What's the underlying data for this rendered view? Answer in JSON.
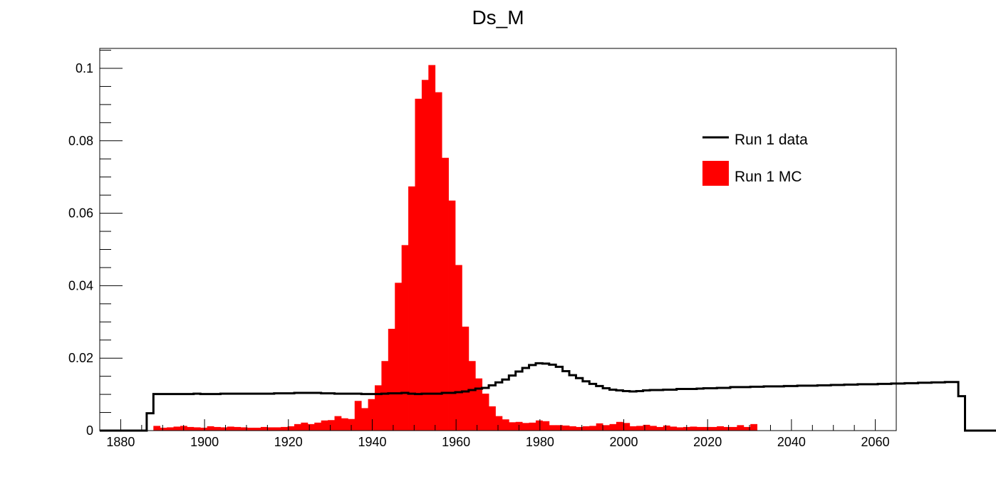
{
  "chart_data": {
    "type": "bar",
    "title": "Ds_M",
    "xlabel": "",
    "ylabel": "",
    "xlim": [
      1875,
      2065
    ],
    "ylim": [
      0,
      0.1055
    ],
    "x_ticks": [
      1880,
      1900,
      1920,
      1940,
      1960,
      1980,
      2000,
      2020,
      2040,
      2060
    ],
    "y_ticks": [
      0,
      0.02,
      0.04,
      0.06,
      0.08,
      0.1
    ],
    "y_tick_labels": [
      "0",
      "0.02",
      "0.04",
      "0.06",
      "0.08",
      "0.1"
    ],
    "grid": false,
    "legend_position": "top-right",
    "bin_start": 1875,
    "bin_width": 1.6,
    "series": [
      {
        "name": "Run 1 MC",
        "style": "filled-histogram",
        "color": "#ff0000",
        "values": [
          0,
          0,
          0,
          0,
          0,
          0,
          0,
          0,
          0.0013,
          0.0008,
          0.0009,
          0.0011,
          0.0013,
          0.001,
          0.0009,
          0.0008,
          0.0012,
          0.001,
          0.0009,
          0.0011,
          0.001,
          0.0009,
          0.0008,
          0.0008,
          0.001,
          0.0009,
          0.0009,
          0.001,
          0.0012,
          0.0018,
          0.0022,
          0.0018,
          0.0022,
          0.0028,
          0.0029,
          0.004,
          0.0034,
          0.0032,
          0.0082,
          0.0062,
          0.0087,
          0.0125,
          0.0192,
          0.0281,
          0.0408,
          0.0512,
          0.0674,
          0.0916,
          0.0968,
          0.1009,
          0.0934,
          0.0753,
          0.0635,
          0.0457,
          0.0287,
          0.0192,
          0.0144,
          0.0102,
          0.0067,
          0.004,
          0.0031,
          0.0023,
          0.0024,
          0.0021,
          0.0022,
          0.0028,
          0.0026,
          0.0015,
          0.0015,
          0.0014,
          0.0012,
          0.001,
          0.0012,
          0.0013,
          0.002,
          0.0015,
          0.0018,
          0.0024,
          0.0021,
          0.0012,
          0.0013,
          0.0016,
          0.0013,
          0.001,
          0.0014,
          0.0011,
          0.0009,
          0.001,
          0.0011,
          0.001,
          0.001,
          0.001,
          0.0012,
          0.001,
          0.001,
          0.0015,
          0.001,
          0.0018,
          0,
          0,
          0,
          0,
          0,
          0,
          0,
          0,
          0,
          0
        ]
      },
      {
        "name": "Run 1 data",
        "style": "line-histogram",
        "color": "#000000",
        "values": [
          0,
          0,
          0,
          0,
          0,
          0,
          0,
          0.0048,
          0.0101,
          0.0101,
          0.0101,
          0.0101,
          0.0101,
          0.0101,
          0.0102,
          0.0101,
          0.0101,
          0.0101,
          0.0102,
          0.0102,
          0.0102,
          0.0102,
          0.0102,
          0.0102,
          0.0102,
          0.0102,
          0.0103,
          0.0103,
          0.0103,
          0.0104,
          0.0104,
          0.0104,
          0.0104,
          0.0103,
          0.0103,
          0.0102,
          0.0102,
          0.0102,
          0.0102,
          0.0101,
          0.0101,
          0.0101,
          0.0102,
          0.0103,
          0.0103,
          0.0104,
          0.0102,
          0.0101,
          0.0102,
          0.0102,
          0.0102,
          0.0104,
          0.0104,
          0.0106,
          0.0108,
          0.0112,
          0.0116,
          0.0118,
          0.0125,
          0.0133,
          0.0141,
          0.0152,
          0.0163,
          0.0173,
          0.0181,
          0.0186,
          0.0185,
          0.0182,
          0.0176,
          0.0164,
          0.0153,
          0.0145,
          0.0136,
          0.0129,
          0.0123,
          0.0117,
          0.0113,
          0.0111,
          0.0109,
          0.0108,
          0.0109,
          0.0111,
          0.0112,
          0.0112,
          0.0113,
          0.0113,
          0.0115,
          0.0115,
          0.0115,
          0.0116,
          0.0117,
          0.0117,
          0.0118,
          0.0118,
          0.012,
          0.012,
          0.012,
          0.0121,
          0.0121,
          0.0122,
          0.0122,
          0.0122,
          0.0123,
          0.0123,
          0.0124,
          0.0124,
          0.0124,
          0.0125,
          0.0125,
          0.0126,
          0.0126,
          0.0127,
          0.0127,
          0.0128,
          0.0128,
          0.0128,
          0.0129,
          0.0129,
          0.013,
          0.013,
          0.0131,
          0.0131,
          0.0132,
          0.0132,
          0.0133,
          0.0133,
          0.0134,
          0.0134,
          0.0095,
          0,
          0,
          0,
          0,
          0,
          0,
          0,
          0,
          0
        ]
      }
    ]
  }
}
